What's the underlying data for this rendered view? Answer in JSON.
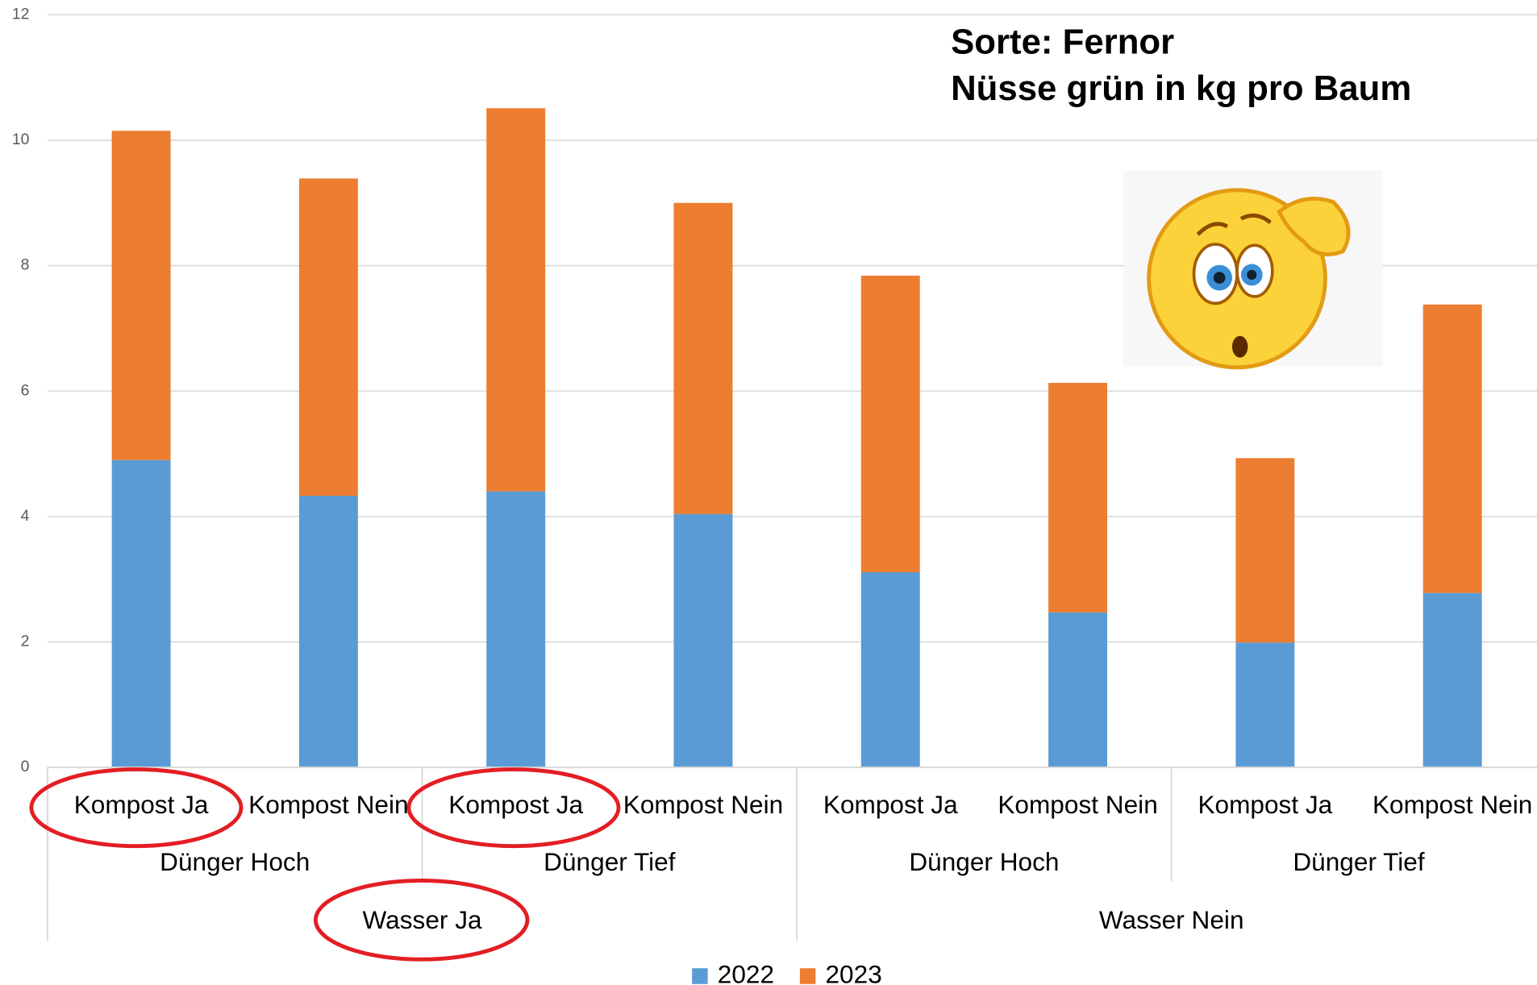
{
  "chart_data": {
    "type": "stacked_bar",
    "title": [
      "Sorte: Fernor",
      "Nüsse grün in kg pro Baum"
    ],
    "categories": [
      "Kompost Ja",
      "Kompost Nein",
      "Kompost Ja",
      "Kompost Nein",
      "Kompost Ja",
      "Kompost Nein",
      "Kompost Ja",
      "Kompost Nein"
    ],
    "category_groups": [
      "Dünger Hoch",
      "Dünger Tief",
      "Dünger Hoch",
      "Dünger Tief"
    ],
    "category_supergroups": [
      "Wasser Ja",
      "Wasser Nein"
    ],
    "series": [
      {
        "name": "2022",
        "color": "#5b9bd5",
        "values": [
          4.9,
          4.33,
          4.4,
          4.04,
          3.11,
          2.47,
          1.99,
          2.78
        ]
      },
      {
        "name": "2023",
        "color": "#ed7d31",
        "values": [
          5.25,
          5.06,
          6.11,
          4.96,
          4.73,
          3.66,
          2.94,
          4.6
        ]
      }
    ],
    "ylim": [
      0,
      12
    ],
    "yticks": [
      0,
      2,
      4,
      6,
      8,
      10,
      12
    ],
    "grid": true,
    "legend": "bottom"
  }
}
